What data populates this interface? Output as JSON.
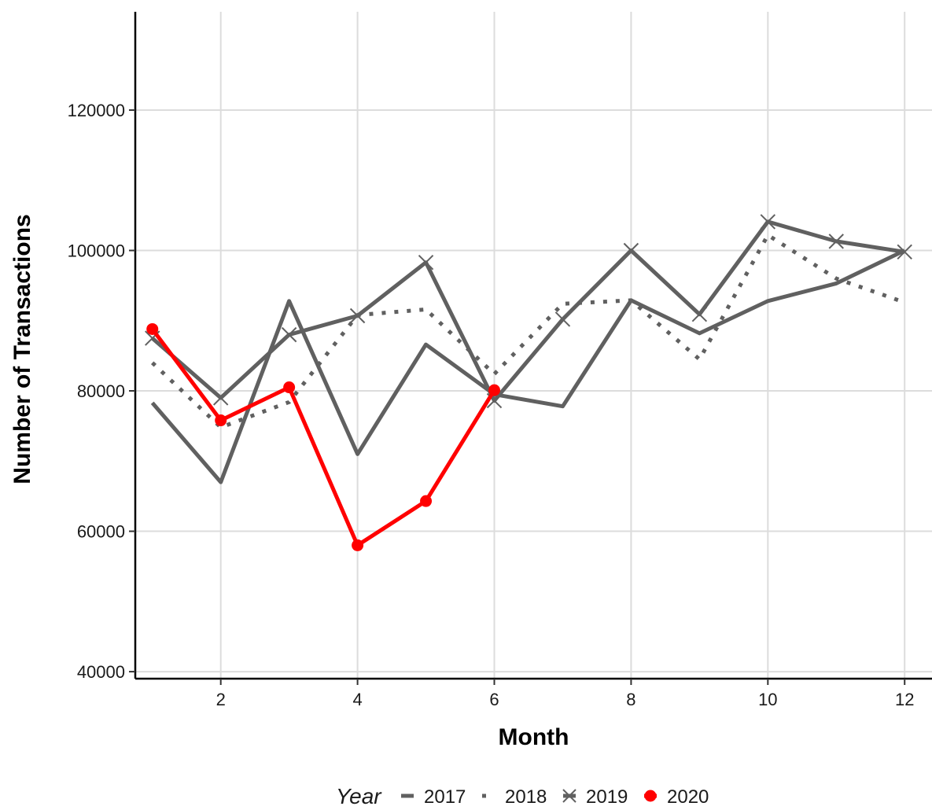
{
  "chart_data": {
    "type": "line",
    "title": "",
    "xlabel": "Month",
    "ylabel": "Number of Transactions",
    "xlim": [
      0.75,
      12.4
    ],
    "ylim": [
      39000,
      134000
    ],
    "xticks": [
      2,
      4,
      6,
      8,
      10,
      12
    ],
    "yticks": [
      40000,
      60000,
      80000,
      100000,
      120000
    ],
    "grid": true,
    "legend": {
      "title": "Year",
      "position": "bottom"
    },
    "series": [
      {
        "name": "2017",
        "line_style": "solid",
        "marker": "none",
        "color": "#606060",
        "x": [
          1,
          2,
          3,
          4,
          5,
          6,
          7,
          8,
          9,
          10,
          11,
          12
        ],
        "y": [
          78300,
          67000,
          92800,
          71000,
          86600,
          79500,
          77800,
          92900,
          88200,
          92800,
          95300,
          100000
        ]
      },
      {
        "name": "2018",
        "line_style": "dotted",
        "marker": "none",
        "color": "#606060",
        "x": [
          1,
          2,
          3,
          4,
          5,
          6,
          7,
          8,
          9,
          10,
          11,
          12
        ],
        "y": [
          84000,
          74800,
          78400,
          90800,
          91600,
          82400,
          92400,
          92900,
          84500,
          102200,
          96000,
          92600
        ]
      },
      {
        "name": "2019",
        "line_style": "solid",
        "marker": "x",
        "color": "#606060",
        "x": [
          1,
          2,
          3,
          4,
          5,
          6,
          7,
          8,
          9,
          10,
          11,
          12
        ],
        "y": [
          87500,
          79000,
          88000,
          90700,
          98300,
          78600,
          90200,
          100000,
          90900,
          104100,
          101300,
          99800
        ]
      },
      {
        "name": "2020",
        "line_style": "solid",
        "marker": "circle",
        "color": "#ff0000",
        "x": [
          1,
          2,
          3,
          4,
          5,
          6
        ],
        "y": [
          88800,
          75800,
          80500,
          58000,
          64300,
          80100
        ]
      }
    ]
  }
}
